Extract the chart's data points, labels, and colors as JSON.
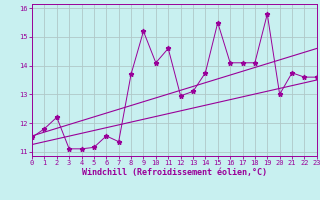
{
  "title": "",
  "xlabel": "Windchill (Refroidissement éolien,°C)",
  "ylabel": "",
  "bg_color": "#c8f0f0",
  "line_color": "#990099",
  "grid_color": "#b0c8c8",
  "x_data": [
    0,
    1,
    2,
    3,
    4,
    5,
    6,
    7,
    8,
    9,
    10,
    11,
    12,
    13,
    14,
    15,
    16,
    17,
    18,
    19,
    20,
    21,
    22,
    23
  ],
  "y_data": [
    11.5,
    11.8,
    12.2,
    11.1,
    11.1,
    11.15,
    11.55,
    11.35,
    13.7,
    15.2,
    14.1,
    14.6,
    12.95,
    13.1,
    13.75,
    15.5,
    14.1,
    14.1,
    14.1,
    15.8,
    13.0,
    13.75,
    13.6,
    13.6
  ],
  "trend1_x": [
    0,
    23
  ],
  "trend1_y": [
    11.25,
    13.5
  ],
  "trend2_x": [
    0,
    23
  ],
  "trend2_y": [
    11.55,
    14.6
  ],
  "xlim": [
    0,
    23
  ],
  "ylim": [
    10.85,
    16.15
  ],
  "yticks": [
    11,
    12,
    13,
    14,
    15,
    16
  ],
  "xticks": [
    0,
    1,
    2,
    3,
    4,
    5,
    6,
    7,
    8,
    9,
    10,
    11,
    12,
    13,
    14,
    15,
    16,
    17,
    18,
    19,
    20,
    21,
    22,
    23
  ],
  "tick_fontsize": 5.0,
  "xlabel_fontsize": 6.0,
  "marker_size": 3.5
}
